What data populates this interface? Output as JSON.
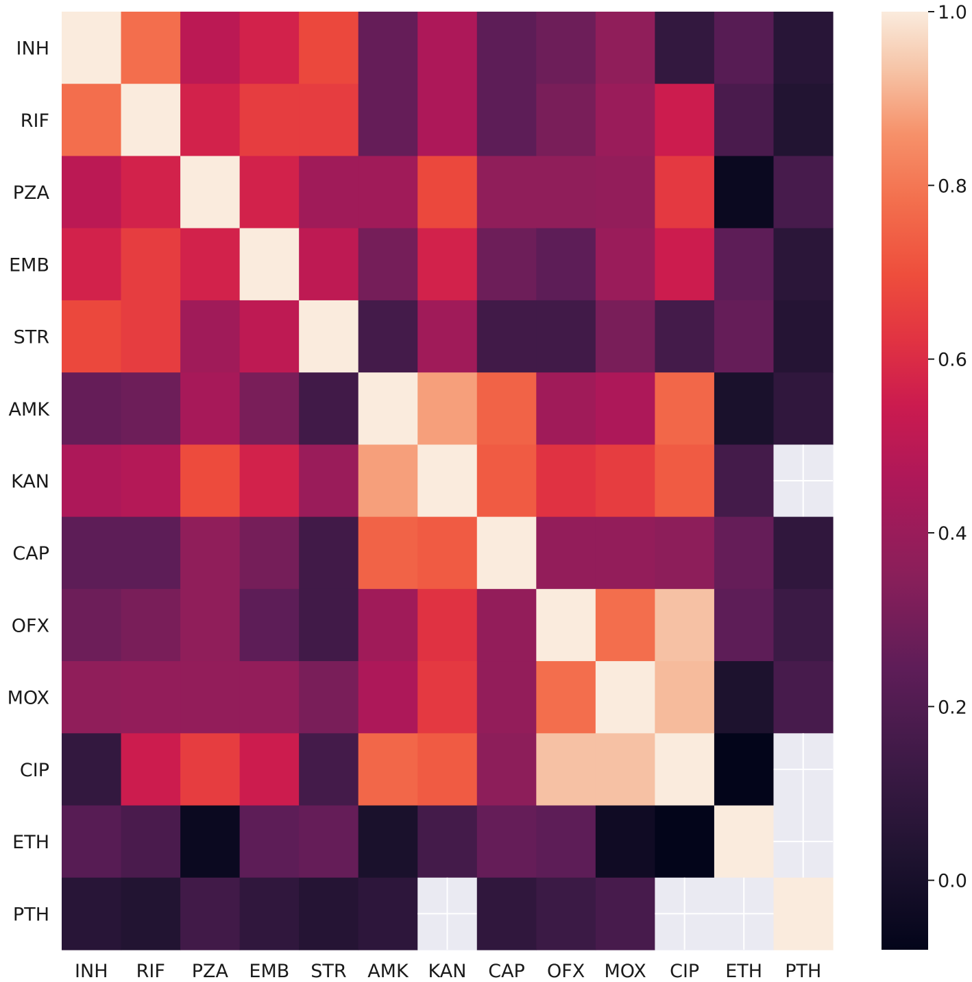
{
  "chart_data": {
    "type": "heatmap",
    "title": "",
    "xlabel": "",
    "ylabel": "",
    "x_labels": [
      "INH",
      "RIF",
      "PZA",
      "EMB",
      "STR",
      "AMK",
      "KAN",
      "CAP",
      "OFX",
      "MOX",
      "CIP",
      "ETH",
      "PTH"
    ],
    "y_labels": [
      "INH",
      "RIF",
      "PZA",
      "EMB",
      "STR",
      "AMK",
      "KAN",
      "CAP",
      "OFX",
      "MOX",
      "CIP",
      "ETH",
      "PTH"
    ],
    "values": [
      [
        1.0,
        0.78,
        0.5,
        0.57,
        0.68,
        0.26,
        0.46,
        0.24,
        0.28,
        0.37,
        0.1,
        0.22,
        0.06
      ],
      [
        0.78,
        1.0,
        0.57,
        0.65,
        0.65,
        0.26,
        0.46,
        0.24,
        0.31,
        0.4,
        0.55,
        0.18,
        0.04
      ],
      [
        0.5,
        0.57,
        1.0,
        0.57,
        0.42,
        0.42,
        0.68,
        0.37,
        0.37,
        0.38,
        0.64,
        -0.05,
        0.17
      ],
      [
        0.57,
        0.65,
        0.57,
        1.0,
        0.51,
        0.3,
        0.57,
        0.28,
        0.24,
        0.4,
        0.55,
        0.24,
        0.07
      ],
      [
        0.68,
        0.65,
        0.42,
        0.51,
        1.0,
        0.16,
        0.42,
        0.15,
        0.15,
        0.31,
        0.16,
        0.26,
        0.05
      ],
      [
        0.26,
        0.28,
        0.44,
        0.31,
        0.15,
        1.0,
        0.88,
        0.75,
        0.42,
        0.46,
        0.76,
        0.01,
        0.09
      ],
      [
        0.46,
        0.48,
        0.69,
        0.57,
        0.4,
        0.88,
        1.0,
        0.73,
        0.62,
        0.65,
        0.73,
        0.16,
        null
      ],
      [
        0.24,
        0.24,
        0.37,
        0.3,
        0.15,
        0.75,
        0.73,
        1.0,
        0.38,
        0.38,
        0.36,
        0.26,
        0.09
      ],
      [
        0.28,
        0.31,
        0.37,
        0.24,
        0.15,
        0.42,
        0.62,
        0.38,
        1.0,
        0.78,
        0.93,
        0.24,
        0.13
      ],
      [
        0.37,
        0.38,
        0.38,
        0.38,
        0.31,
        0.46,
        0.64,
        0.38,
        0.78,
        1.0,
        0.92,
        0.02,
        0.17
      ],
      [
        0.1,
        0.55,
        0.65,
        0.55,
        0.16,
        0.76,
        0.73,
        0.36,
        0.93,
        0.93,
        1.0,
        -0.08,
        null
      ],
      [
        0.22,
        0.18,
        -0.05,
        0.24,
        0.26,
        0.01,
        0.16,
        0.26,
        0.24,
        -0.03,
        -0.08,
        1.0,
        null
      ],
      [
        0.06,
        0.04,
        0.15,
        0.09,
        0.05,
        0.08,
        null,
        0.09,
        0.13,
        0.17,
        null,
        null,
        1.0
      ]
    ],
    "missing_color": "#eaeaf2",
    "colormap": "rocket",
    "vmin": -0.08,
    "vmax": 1.0,
    "colorbar_ticks": [
      "0.0",
      "0.2",
      "0.4",
      "0.6",
      "0.8",
      "1.0"
    ],
    "colorbar_tick_values": [
      0.0,
      0.2,
      0.4,
      0.6,
      0.8,
      1.0
    ],
    "grid": false,
    "legend": "colorbar-right"
  }
}
